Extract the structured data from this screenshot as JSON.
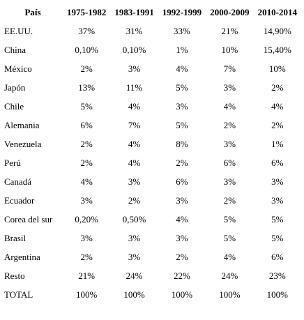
{
  "table": {
    "headers": [
      "País",
      "1975-1982",
      "1983-1991",
      "1992-1999",
      "2000-2009",
      "2010-2014"
    ],
    "rows": [
      {
        "country": "EE.UU.",
        "values": [
          "37%",
          "31%",
          "33%",
          "21%",
          "14,90%"
        ]
      },
      {
        "country": "China",
        "values": [
          "0,10%",
          "0,10%",
          "1%",
          "10%",
          "15,40%"
        ]
      },
      {
        "country": "México",
        "values": [
          "2%",
          "3%",
          "4%",
          "7%",
          "10%"
        ]
      },
      {
        "country": "Japón",
        "values": [
          "13%",
          "11%",
          "5%",
          "3%",
          "2%"
        ]
      },
      {
        "country": "Chile",
        "values": [
          "5%",
          "4%",
          "3%",
          "4%",
          "4%"
        ]
      },
      {
        "country": "Alemania",
        "values": [
          "6%",
          "7%",
          "5%",
          "2%",
          "2%"
        ]
      },
      {
        "country": "Venezuela",
        "values": [
          "2%",
          "4%",
          "8%",
          "3%",
          "1%"
        ]
      },
      {
        "country": "Perú",
        "values": [
          "2%",
          "4%",
          "2%",
          "6%",
          "6%"
        ]
      },
      {
        "country": "Canadá",
        "values": [
          "4%",
          "3%",
          "6%",
          "3%",
          "3%"
        ]
      },
      {
        "country": "Ecuador",
        "values": [
          "3%",
          "2%",
          "3%",
          "2%",
          "3%"
        ]
      },
      {
        "country": "Corea del sur",
        "values": [
          "0,20%",
          "0,50%",
          "4%",
          "5%",
          "5%"
        ]
      },
      {
        "country": "Brasil",
        "values": [
          "3%",
          "3%",
          "3%",
          "5%",
          "5%"
        ]
      },
      {
        "country": "Argentina",
        "values": [
          "2%",
          "3%",
          "2%",
          "4%",
          "6%"
        ]
      },
      {
        "country": "Resto",
        "values": [
          "21%",
          "24%",
          "22%",
          "24%",
          "23%"
        ]
      },
      {
        "country": "TOTAL",
        "values": [
          "100%",
          "100%",
          "100%",
          "100%",
          "100%"
        ]
      }
    ]
  }
}
